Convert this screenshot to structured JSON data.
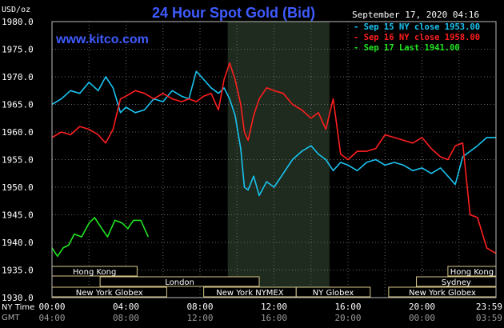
{
  "chart_data": {
    "type": "line",
    "title": "24 Hour Spot Gold (Bid)",
    "website": "www.kitco.com",
    "unit_label": "USD/oz",
    "date_label": "September 17, 2020 04:16",
    "ylim": [
      1930,
      1980
    ],
    "y_ticks": [
      "1980.0",
      "1975.0",
      "1970.0",
      "1965.0",
      "1960.0",
      "1955.0",
      "1950.0",
      "1945.0",
      "1940.0",
      "1935.0",
      "1930.0"
    ],
    "xlim": [
      0,
      24
    ],
    "x_ticks": [
      {
        "hour": 0,
        "ny": "00:00",
        "gmt": "04:00"
      },
      {
        "hour": 4,
        "ny": "04:00",
        "gmt": "08:00"
      },
      {
        "hour": 8,
        "ny": "08:00",
        "gmt": "12:00"
      },
      {
        "hour": 12,
        "ny": "12:00",
        "gmt": "16:00"
      },
      {
        "hour": 16,
        "ny": "16:00",
        "gmt": "20:00"
      },
      {
        "hour": 20,
        "ny": "20:00",
        "gmt": "00:00"
      },
      {
        "hour": 24,
        "ny": "23:59",
        "gmt": "03:59"
      }
    ],
    "x_row_labels": {
      "ny": "NY Time",
      "gmt": "GMT"
    },
    "shaded_region": [
      9.5,
      15
    ],
    "grid": true,
    "legend_position": "top-right",
    "series": [
      {
        "name": "Sep 15 NY close 1953.00",
        "color": "#19c3f0",
        "x": [
          0,
          0.5,
          1,
          1.5,
          2,
          2.5,
          2.9,
          3.3,
          3.7,
          4,
          4.5,
          5,
          5.5,
          6,
          6.5,
          7,
          7.4,
          7.8,
          8.2,
          8.6,
          9,
          9.3,
          9.6,
          9.9,
          10.2,
          10.4,
          10.6,
          10.9,
          11.2,
          11.6,
          12,
          12.5,
          13,
          13.5,
          14,
          14.4,
          14.8,
          15.2,
          15.6,
          16,
          16.5,
          17,
          17.5,
          18,
          18.5,
          19,
          19.5,
          20,
          20.5,
          21,
          21.4,
          21.8,
          22.2,
          22.6,
          23,
          23.5,
          24
        ],
        "values": [
          1965.0,
          1966.0,
          1967.5,
          1967.0,
          1969.0,
          1967.5,
          1970.0,
          1968.0,
          1963.5,
          1964.5,
          1963.5,
          1964.0,
          1966.0,
          1965.5,
          1967.5,
          1966.5,
          1966.0,
          1971.0,
          1969.5,
          1968.0,
          1967.0,
          1968.0,
          1966.0,
          1963.0,
          1957.0,
          1950.0,
          1949.5,
          1952.0,
          1948.5,
          1951.0,
          1950.0,
          1952.5,
          1955.0,
          1956.5,
          1957.5,
          1956.0,
          1955.0,
          1953.0,
          1954.5,
          1954.0,
          1953.0,
          1954.5,
          1955.0,
          1954.0,
          1954.5,
          1954.0,
          1953.0,
          1953.5,
          1952.5,
          1953.5,
          1952.0,
          1950.5,
          1955.5,
          1956.5,
          1957.5,
          1959.0,
          1959.0
        ]
      },
      {
        "name": "Sep 16 NY close 1958.00",
        "color": "#ff1e1e",
        "x": [
          0,
          0.5,
          1,
          1.5,
          2,
          2.5,
          2.9,
          3.3,
          3.7,
          4,
          4.5,
          5,
          5.5,
          6,
          6.5,
          7,
          7.4,
          7.8,
          8.2,
          8.6,
          9,
          9.3,
          9.6,
          9.9,
          10.2,
          10.4,
          10.6,
          10.9,
          11.2,
          11.6,
          12,
          12.5,
          13,
          13.5,
          14,
          14.4,
          14.8,
          15.2,
          15.6,
          16,
          16.5,
          17,
          17.5,
          18,
          18.5,
          19,
          19.5,
          20,
          20.5,
          21,
          21.4,
          21.8,
          22.2,
          22.6,
          23,
          23.5,
          24
        ],
        "values": [
          1959.0,
          1960.0,
          1959.5,
          1961.0,
          1960.5,
          1959.5,
          1958.0,
          1960.5,
          1966.0,
          1966.5,
          1967.5,
          1967.0,
          1966.0,
          1967.0,
          1966.0,
          1965.5,
          1966.0,
          1965.5,
          1966.5,
          1967.0,
          1964.0,
          1969.5,
          1972.5,
          1969.5,
          1965.0,
          1960.0,
          1958.5,
          1963.0,
          1966.0,
          1968.0,
          1967.5,
          1967.0,
          1965.0,
          1964.0,
          1962.5,
          1963.5,
          1960.5,
          1966.0,
          1956.0,
          1955.0,
          1956.5,
          1956.5,
          1957.0,
          1959.5,
          1959.0,
          1958.5,
          1958.0,
          1959.0,
          1957.0,
          1955.5,
          1955.0,
          1957.5,
          1958.0,
          1945.0,
          1944.5,
          1939.0,
          1938.0
        ]
      },
      {
        "name": "Sep 17 Last 1941.00",
        "color": "#1ee61e",
        "x": [
          0,
          0.3,
          0.6,
          0.9,
          1.2,
          1.6,
          2.0,
          2.3,
          2.7,
          3.0,
          3.4,
          3.8,
          4.1,
          4.4,
          4.8,
          5.2
        ],
        "values": [
          1939.0,
          1937.5,
          1939.0,
          1939.5,
          1941.5,
          1941.0,
          1943.5,
          1944.5,
          1942.5,
          1941.0,
          1944.0,
          1943.5,
          1942.5,
          1944.0,
          1944.0,
          1941.0
        ]
      }
    ],
    "sessions": [
      {
        "label": "Hong Kong",
        "start": 0,
        "end": 4.6,
        "row": 0
      },
      {
        "label": "Hong Kong",
        "start": 21.4,
        "end": 24,
        "row": 0
      },
      {
        "label": "London",
        "start": 2.6,
        "end": 11.2,
        "row": 1
      },
      {
        "label": "Sydney",
        "start": 19.7,
        "end": 24,
        "row": 1
      },
      {
        "label": "New York Globex",
        "start": 0,
        "end": 6.2,
        "row": 2
      },
      {
        "label": "New York NYMEX",
        "start": 8.2,
        "end": 13.2,
        "row": 2
      },
      {
        "label": "NY Globex",
        "start": 13.2,
        "end": 17.2,
        "row": 2
      },
      {
        "label": "New York Globex",
        "start": 18.2,
        "end": 24,
        "row": 2
      }
    ]
  }
}
